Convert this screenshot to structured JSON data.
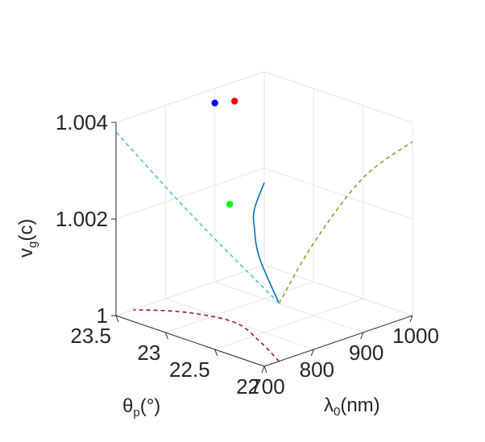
{
  "chart_data": {
    "type": "line3d",
    "axes": {
      "x": {
        "label_main": "λ",
        "label_sub": "0",
        "label_tail": "(nm)",
        "ticks": [
          "700",
          "800",
          "900",
          "1000"
        ],
        "range": [
          700,
          1000
        ]
      },
      "y": {
        "label_main": "θ",
        "label_sub": "p",
        "label_tail": "(°)",
        "ticks": [
          "22",
          "22.5",
          "23",
          "23.5"
        ],
        "range": [
          22,
          23.5
        ]
      },
      "z": {
        "label_main": "v",
        "label_sub": "g",
        "label_tail": "(c)",
        "ticks": [
          "1",
          "1.002",
          "1.004"
        ],
        "range": [
          1,
          1.004
        ]
      }
    },
    "grid": true,
    "series": [
      {
        "style": "solid",
        "color": "#0072BD",
        "points": [
          [
            730,
            22.0,
            1.0012
          ],
          [
            760,
            22.35,
            1.0018
          ],
          [
            800,
            22.6,
            1.0021
          ],
          [
            840,
            22.8,
            1.0022
          ],
          [
            900,
            23.0,
            1.0024
          ]
        ]
      },
      {
        "style": "dashed",
        "color": "#4DBEEE",
        "points": [
          [
            730,
            22.0,
            1.0012
          ],
          [
            715,
            22.8,
            1.0025
          ],
          [
            700,
            23.5,
            1.0038
          ]
        ]
      },
      {
        "style": "dashed",
        "color": "#77AC30",
        "points": [
          [
            730,
            22.0,
            1.0012
          ],
          [
            800,
            22.0,
            1.0022
          ],
          [
            900,
            22.0,
            1.0032
          ],
          [
            1000,
            22.0,
            1.0036
          ]
        ]
      },
      {
        "style": "dashed",
        "color": "#A2142F",
        "points": [
          [
            730,
            22.0,
            1.0
          ],
          [
            770,
            22.4,
            1.0
          ],
          [
            800,
            22.8,
            1.0
          ],
          [
            780,
            23.2,
            1.0
          ],
          [
            735,
            23.5,
            1.0
          ]
        ]
      }
    ],
    "markers": [
      {
        "color": "#0000FF",
        "point": [
          900,
          23.5,
          1.0037
        ]
      },
      {
        "color": "#FF0000",
        "point": [
          940,
          23.5,
          1.0036
        ]
      },
      {
        "color": "#00FF00",
        "point": [
          830,
          23.0,
          1.0022
        ]
      }
    ]
  }
}
